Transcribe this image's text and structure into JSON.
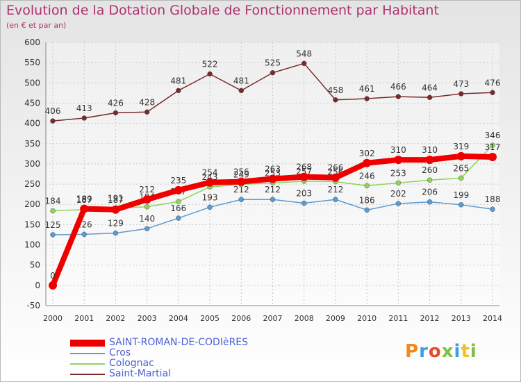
{
  "title": "Evolution de la Dotation Globale de Fonctionnement par Habitant",
  "subtitle": "(en € et par an)",
  "logo_text": "Proxiti",
  "chart_data": {
    "type": "line",
    "title": "Evolution de la Dotation Globale de Fonctionnement par Habitant",
    "ylabel": "(en € et par an)",
    "ylim": [
      -50,
      600
    ],
    "yticks": [
      -50,
      0,
      50,
      100,
      150,
      200,
      250,
      300,
      350,
      400,
      450,
      500,
      550,
      600
    ],
    "grid": true,
    "categories": [
      "2000",
      "2001",
      "2002",
      "2003",
      "2004",
      "2005",
      "2006",
      "2007",
      "2008",
      "2009",
      "2010",
      "2011",
      "2012",
      "2013",
      "2014"
    ],
    "series": [
      {
        "name": "Saint-Martial",
        "color": "#7a2a2a",
        "values": [
          406,
          413,
          426,
          428,
          481,
          522,
          481,
          525,
          548,
          458,
          461,
          466,
          464,
          473,
          476
        ]
      },
      {
        "name": "Cros",
        "color": "#5b9bd0",
        "values": [
          125,
          126,
          129,
          140,
          166,
          193,
          212,
          212,
          203,
          212,
          186,
          202,
          206,
          199,
          188
        ]
      },
      {
        "name": "Colognac",
        "color": "#8ed45a",
        "values": [
          184,
          187,
          191,
          194,
          207,
          243,
          249,
          253,
          257,
          256,
          246,
          253,
          260,
          265,
          346
        ]
      },
      {
        "name": "SAINT-ROMAN-DE-CODIèRES",
        "color": "#ee0000",
        "values": [
          0,
          189,
          187,
          212,
          235,
          254,
          256,
          263,
          268,
          266,
          302,
          310,
          310,
          319,
          317
        ]
      }
    ],
    "legend": [
      "SAINT-ROMAN-DE-CODIèRES",
      "Cros",
      "Colognac",
      "Saint-Martial"
    ]
  }
}
